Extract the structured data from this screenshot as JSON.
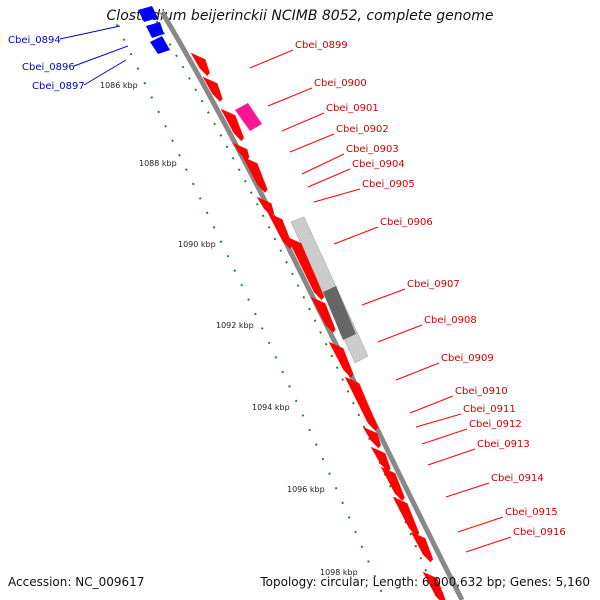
{
  "title": "Clostridium beijerinckii NCIMB 8052, complete genome",
  "accession": "Accession: NC_009617",
  "stats": "Topology: circular; Length: 6,000,632 bp; Genes: 5,160",
  "colors": {
    "forward": "#ff0000",
    "reverse": "#0000ff",
    "highlight": "#ff1493",
    "backbone": "#888888",
    "pseudo_light": "#cccccc",
    "pseudo_dark": "#666666",
    "ticks": "#228b22"
  },
  "scale_ticks": [
    "1086 kbp",
    "1088 kbp",
    "1090 kbp",
    "1092 kbp",
    "1094 kbp",
    "1096 kbp",
    "1098 kbp"
  ],
  "left_labels": [
    "Cbei_0894",
    "Cbei_0896",
    "Cbei_0897"
  ],
  "right_labels": [
    "Cbei_0899",
    "Cbei_0900",
    "Cbei_0901",
    "Cbei_0902",
    "Cbei_0903",
    "Cbei_0904",
    "Cbei_0905",
    "Cbei_0906",
    "Cbei_0907",
    "Cbei_0908",
    "Cbei_0909",
    "Cbei_0910",
    "Cbei_0911",
    "Cbei_0912",
    "Cbei_0913",
    "Cbei_0914",
    "Cbei_0915",
    "Cbei_0916"
  ]
}
